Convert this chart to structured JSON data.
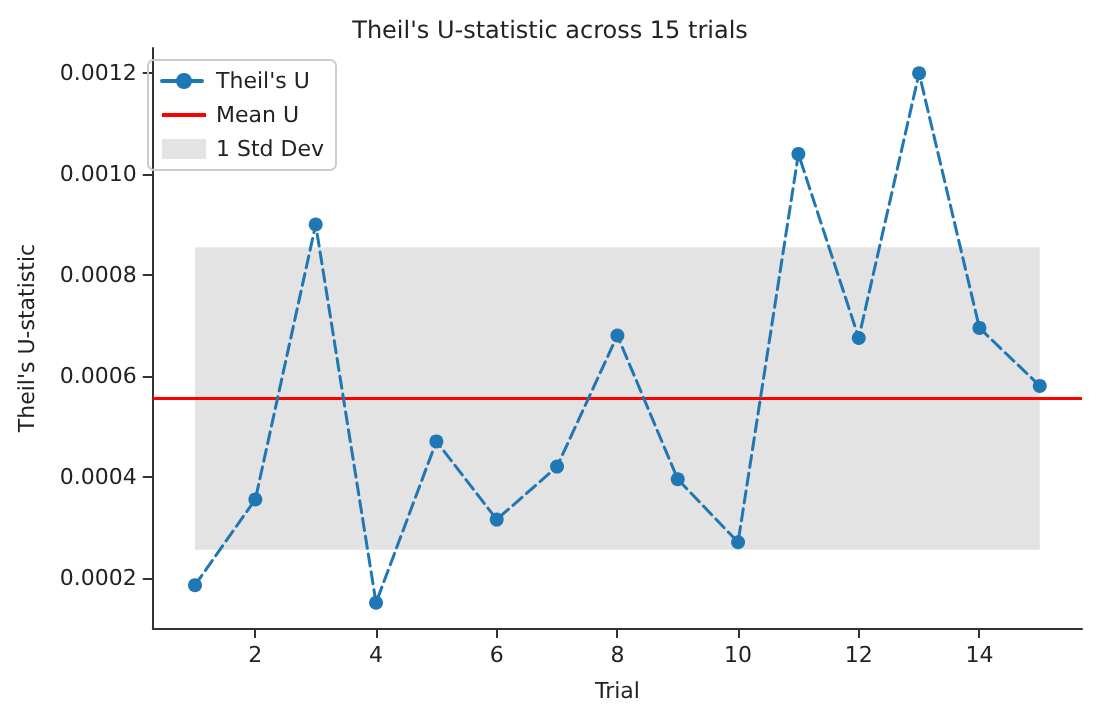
{
  "chart_data": {
    "type": "line",
    "title": "Theil's U-statistic across 15 trials",
    "xlabel": "Trial",
    "ylabel": "Theil's U-statistic",
    "x": [
      1,
      2,
      3,
      4,
      5,
      6,
      7,
      8,
      9,
      10,
      11,
      12,
      13,
      14,
      15
    ],
    "series": [
      {
        "name": "Theil's U",
        "color": "#1f77b4",
        "values": [
          0.000185,
          0.000355,
          0.0009,
          0.00015,
          0.00047,
          0.000315,
          0.00042,
          0.00068,
          0.000395,
          0.00027,
          0.00104,
          0.000675,
          0.0012,
          0.000695,
          0.00058
        ]
      }
    ],
    "ref_lines": [
      {
        "axis": "y",
        "value": 0.000555,
        "label": "Mean U",
        "color": "#ff0000"
      }
    ],
    "bands": [
      {
        "axis": "y",
        "from": 0.000255,
        "to": 0.000855,
        "label": "1 Std Dev",
        "color": "#e3e3e3"
      }
    ],
    "xlim": [
      0.3,
      15.7
    ],
    "xticks": [
      2,
      4,
      6,
      8,
      10,
      12,
      14
    ],
    "ylim": [
      0.0001,
      0.00125
    ],
    "yticks": [
      0.0002,
      0.0004,
      0.0006,
      0.0008,
      {
        "value": 0.001,
        "label": "0.0010"
      },
      0.0012
    ],
    "marker": "circle",
    "line_style": "dashed",
    "grid": false,
    "legend": "top left"
  }
}
